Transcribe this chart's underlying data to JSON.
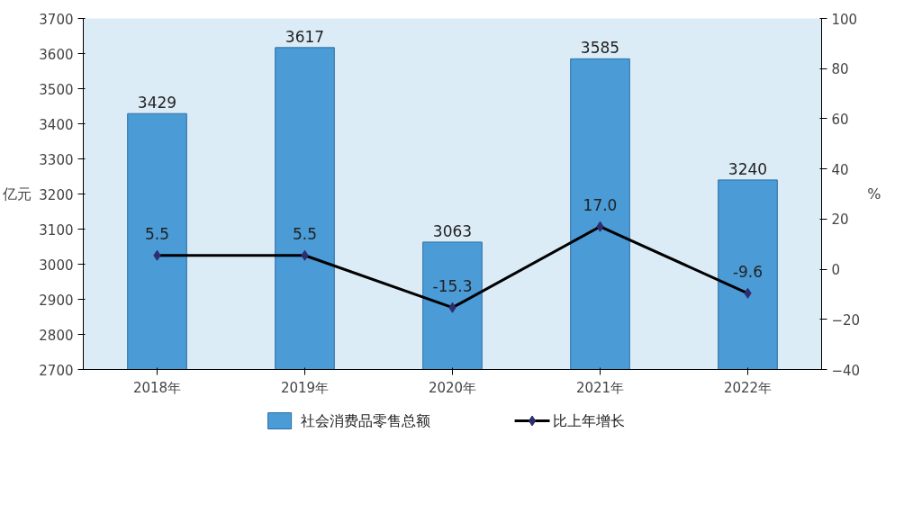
{
  "chart_data": {
    "type": "bar",
    "ylabel": "亿元",
    "y2label": "%",
    "categories": [
      "2018年",
      "2019年",
      "2020年",
      "2021年",
      "2022年"
    ],
    "series": [
      {
        "name": "社会消费品零售总额",
        "color": "#4a9bd6",
        "values": [
          3429,
          3617,
          3063,
          3585,
          3240
        ],
        "value_labels": [
          "3429",
          "3617",
          "3063",
          "3585",
          "3240"
        ]
      },
      {
        "name": "比上年增长",
        "type": "line",
        "axis": "y2",
        "color": "#000000",
        "marker": "diamond",
        "values": [
          5.5,
          5.5,
          -15.3,
          17.0,
          -9.6
        ],
        "value_labels": [
          "5.5",
          "5.5",
          "-15.3",
          "17.0",
          "-9.6"
        ]
      }
    ],
    "ylim": [
      2700,
      3700
    ],
    "yticks": [
      2700,
      2800,
      2900,
      3000,
      3100,
      3200,
      3300,
      3400,
      3500,
      3600,
      3700
    ],
    "y2lim": [
      -40,
      100
    ],
    "y2ticks": [
      -40,
      -20,
      0,
      20,
      40,
      60,
      80,
      100
    ],
    "legend": "bottom",
    "grid": false
  }
}
